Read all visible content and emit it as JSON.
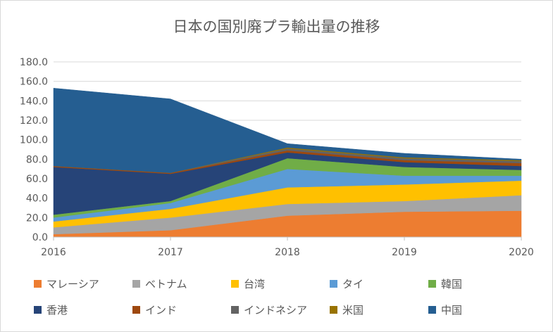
{
  "chart_data": {
    "type": "area",
    "stacked": true,
    "title": "日本の国別廃プラ輸出量の推移",
    "x": [
      "2016",
      "2017",
      "2018",
      "2019",
      "2020"
    ],
    "ylim": [
      0,
      180
    ],
    "yticks": [
      "0.0",
      "20.0",
      "40.0",
      "60.0",
      "80.0",
      "100.0",
      "120.0",
      "140.0",
      "160.0",
      "180.0"
    ],
    "grid": true,
    "legend_position": "bottom",
    "series": [
      {
        "name": "マレーシア",
        "color": "#ed7d31",
        "values": [
          3,
          7,
          22,
          26,
          27
        ]
      },
      {
        "name": "ベトナム",
        "color": "#a5a5a5",
        "values": [
          7,
          13,
          12,
          11,
          16
        ]
      },
      {
        "name": "台湾",
        "color": "#ffc000",
        "values": [
          6,
          9,
          17,
          17,
          15
        ]
      },
      {
        "name": "タイ",
        "color": "#5b9bd5",
        "values": [
          4,
          6,
          19,
          9,
          5
        ]
      },
      {
        "name": "韓国",
        "color": "#70ad47",
        "values": [
          3,
          2,
          11,
          9,
          6
        ]
      },
      {
        "name": "香港",
        "color": "#264478",
        "values": [
          49,
          28,
          6,
          5,
          4
        ]
      },
      {
        "name": "インド",
        "color": "#9e480e",
        "values": [
          1,
          1,
          2,
          2,
          3
        ]
      },
      {
        "name": "インドネシア",
        "color": "#636363",
        "values": [
          0,
          0,
          2,
          2,
          2
        ]
      },
      {
        "name": "米国",
        "color": "#997300",
        "values": [
          0,
          0,
          1,
          1,
          1
        ]
      },
      {
        "name": "中国",
        "color": "#255e91",
        "values": [
          80,
          76,
          4,
          4,
          1
        ]
      }
    ]
  }
}
